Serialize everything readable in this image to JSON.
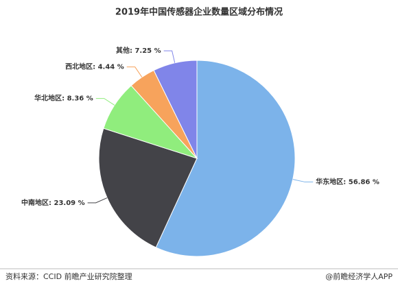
{
  "chart_data": {
    "type": "pie",
    "title": "2019年中国传感器企业数量区域分布情况",
    "values": [
      56.86,
      23.09,
      8.36,
      4.44,
      7.25
    ],
    "value_labels": [
      "华东地区: 56.86 %",
      "中南地区: 23.09 %",
      "华北地区: 8.36 %",
      "西北地区: 4.44 %",
      "其他: 7.25 %"
    ],
    "colors": [
      "#7cb3ea",
      "#434348",
      "#90ed7d",
      "#f7a35c",
      "#8085e9"
    ]
  },
  "footer": {
    "source": "资料来源：CCID 前瞻产业研究院整理",
    "brand": "@前瞻经济学人APP"
  }
}
